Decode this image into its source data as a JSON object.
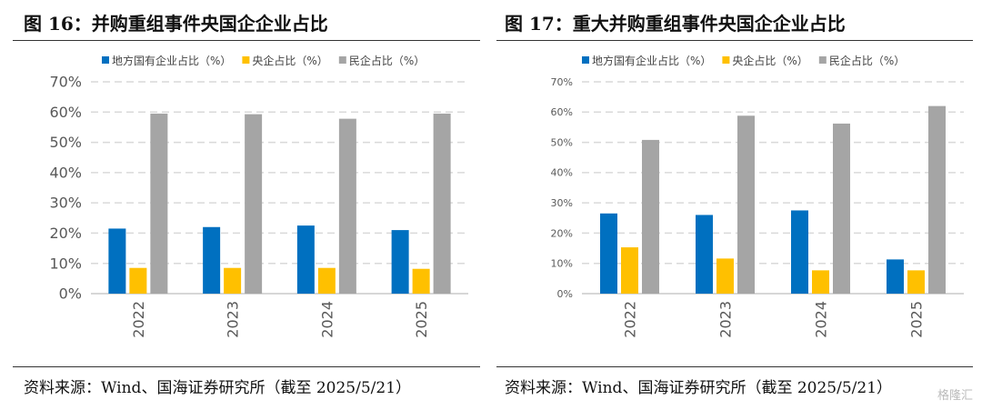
{
  "panels": [
    {
      "title": "图 16：并购重组事件央国企企业占比",
      "source": "资料来源：Wind、国海证券研究所（截至 2025/5/21）"
    },
    {
      "title": "图 17：重大并购重组事件央国企企业占比",
      "source": "资料来源：Wind、国海证券研究所（截至 2025/5/21）"
    }
  ],
  "watermark": "格隆汇",
  "colors": {
    "local_soe": "#0070C0",
    "central_soe": "#FFC000",
    "private": "#A5A5A5",
    "grid": "#D9D9D9"
  },
  "chart_data": [
    {
      "type": "bar",
      "categories": [
        "2022",
        "2023",
        "2024",
        "2025"
      ],
      "series": [
        {
          "name": "地方国有企业占比（%）",
          "values": [
            21.5,
            22,
            22.5,
            21
          ]
        },
        {
          "name": "央企占比（%）",
          "values": [
            8.5,
            8.5,
            8.5,
            8.2
          ]
        },
        {
          "name": "民企占比（%）",
          "values": [
            59.5,
            59.3,
            57.8,
            59.5
          ]
        }
      ],
      "yticks": [
        "0%",
        "10%",
        "20%",
        "30%",
        "40%",
        "50%",
        "60%",
        "70%"
      ],
      "ylim": [
        0,
        70
      ],
      "grid": true,
      "legend": "top"
    },
    {
      "type": "bar",
      "categories": [
        "2022",
        "2023",
        "2024",
        "2025"
      ],
      "series": [
        {
          "name": "地方国有企业占比（%）",
          "values": [
            26.5,
            26,
            27.5,
            11.3
          ]
        },
        {
          "name": "央企占比（%）",
          "values": [
            15.3,
            11.6,
            7.7,
            7.7
          ]
        },
        {
          "name": "民企占比（%）",
          "values": [
            50.8,
            58.8,
            56.2,
            62
          ]
        }
      ],
      "yticks": [
        "0%",
        "10%",
        "20%",
        "30%",
        "40%",
        "50%",
        "60%",
        "70%"
      ],
      "ylim": [
        0,
        70
      ],
      "grid": true,
      "legend": "top"
    }
  ]
}
